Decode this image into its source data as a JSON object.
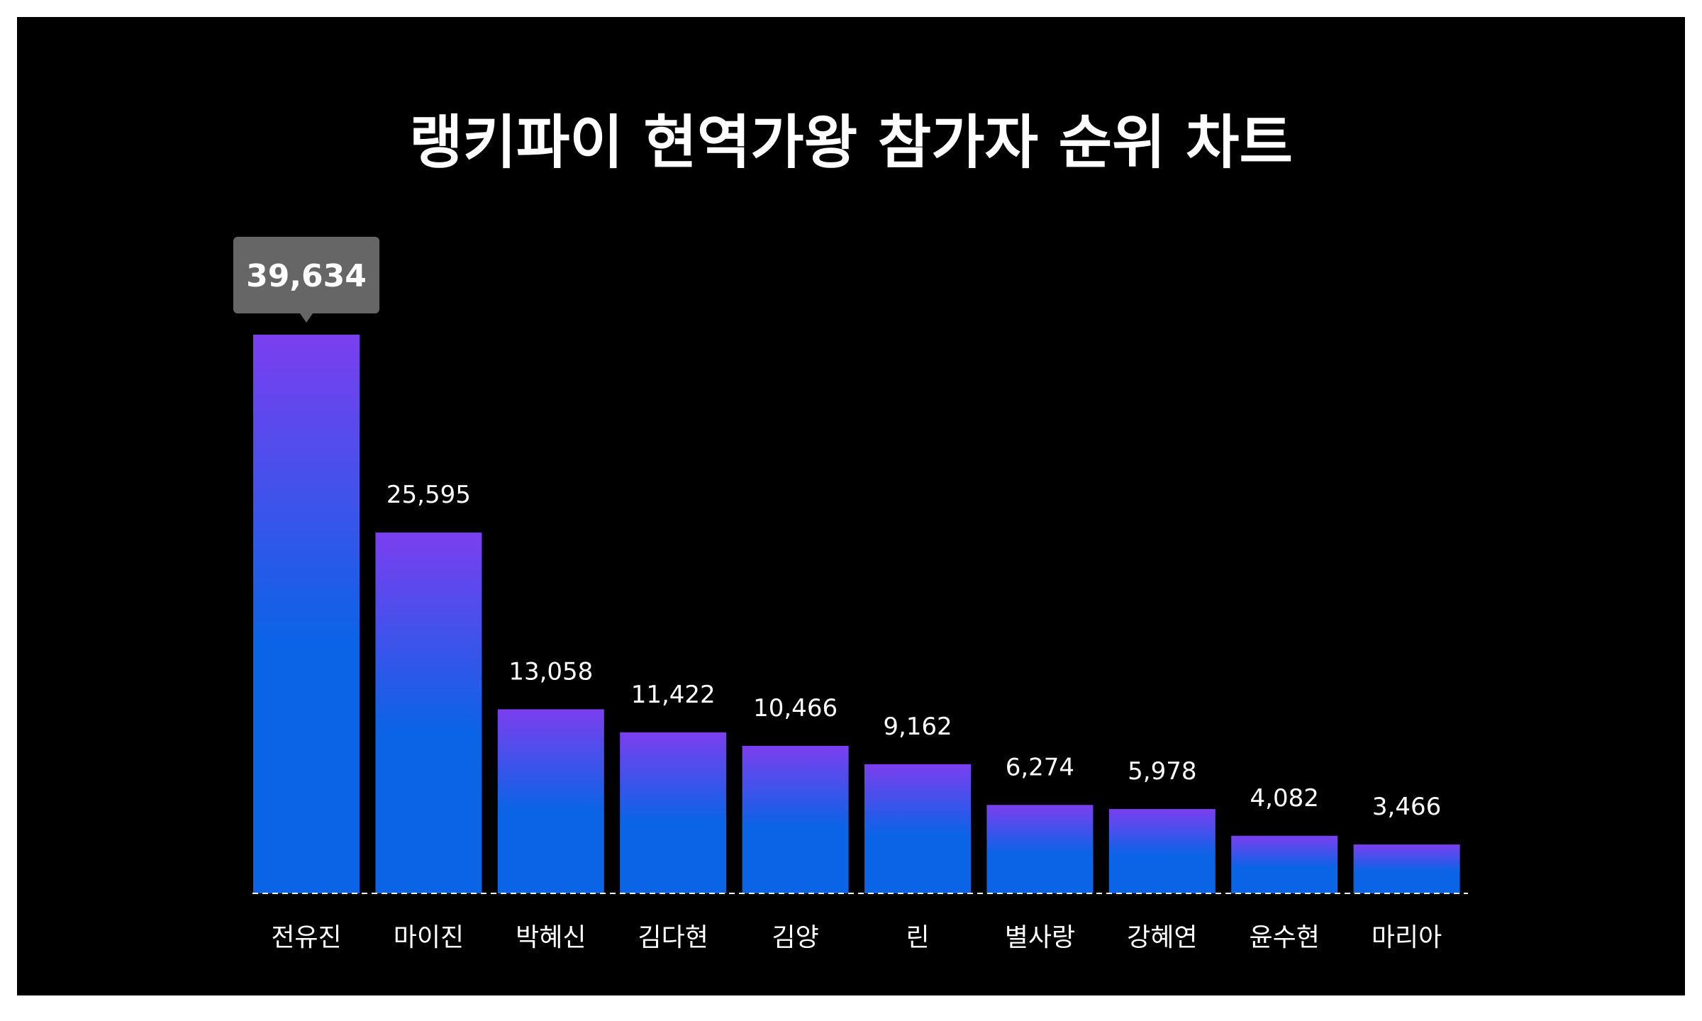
{
  "chart_data": {
    "type": "bar",
    "title": "랭키파이 현역가왕 참가자 순위 차트",
    "categories": [
      "전유진",
      "마이진",
      "박혜신",
      "김다현",
      "김양",
      "린",
      "별사랑",
      "강혜연",
      "윤수현",
      "마리아"
    ],
    "values": [
      39634,
      25595,
      13058,
      11422,
      10466,
      9162,
      6274,
      5978,
      4082,
      3466
    ],
    "value_labels": [
      "39,634",
      "25,595",
      "13,058",
      "11,422",
      "10,466",
      "9,162",
      "6,274",
      "5,978",
      "4,082",
      "3,466"
    ],
    "highlight_index": 0,
    "xlabel": "",
    "ylabel": "",
    "ylim": [
      0,
      39634
    ],
    "grid": false,
    "legend": "none",
    "colors": {
      "background": "#000000",
      "bar_top": "#7b3fef",
      "bar_bottom": "#0b63e6",
      "baseline": "#ffffff",
      "callout_bg": "#666666",
      "text": "#ffffff"
    }
  }
}
